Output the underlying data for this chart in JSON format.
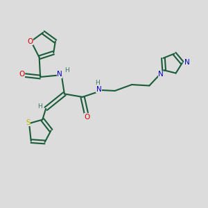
{
  "bg_color": "#dcdcdc",
  "bond_color": "#1a5c3a",
  "atom_colors": {
    "O": "#cc0000",
    "N": "#0000bb",
    "S": "#b8b800",
    "H": "#3a7a5a",
    "C": "#1a5c3a"
  },
  "figsize": [
    3.0,
    3.0
  ],
  "dpi": 100
}
